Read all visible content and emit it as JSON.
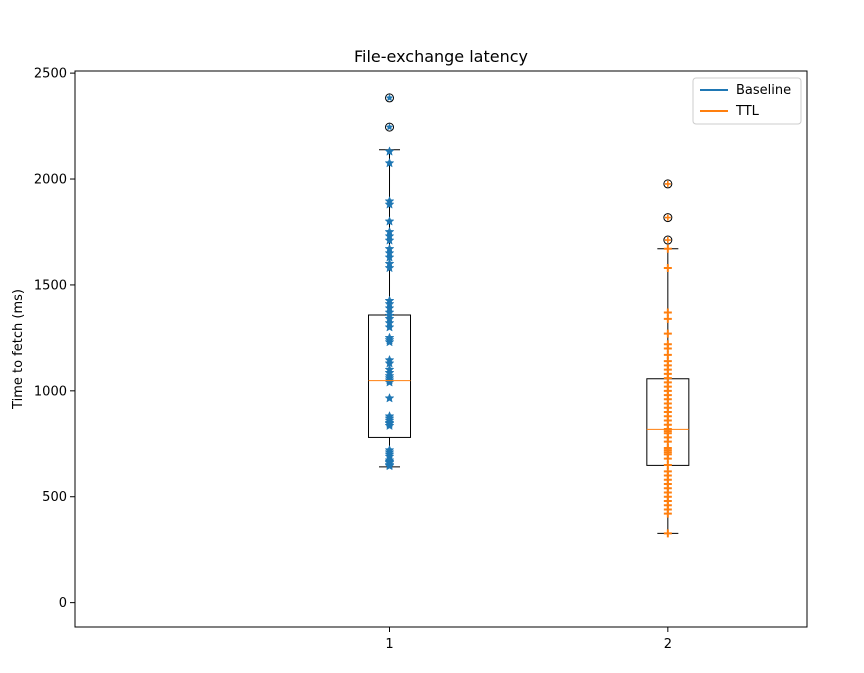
{
  "chart_data": {
    "type": "boxplot",
    "title": "File-exchange latency",
    "xlabel": "",
    "ylabel": "Time to fetch (ms)",
    "x_ticks": [
      "1",
      "2"
    ],
    "y_ticks": [
      0,
      500,
      1000,
      1500,
      2000,
      2500
    ],
    "ylim": [
      -115,
      2510
    ],
    "xlim": [
      -0.13,
      2.5
    ],
    "grid": false,
    "legend": {
      "placement": "top-right",
      "entries": [
        {
          "label": "Baseline",
          "color": "#1f77b4"
        },
        {
          "label": "TTL",
          "color": "#ff7f0e"
        }
      ]
    },
    "series": [
      {
        "legend_label": "Baseline",
        "position": 1,
        "color": "#1f77b4",
        "marker": "star",
        "box": {
          "q1": 780,
          "median": 1048,
          "q3": 1358,
          "whisker_low": 641,
          "whisker_high": 2138
        },
        "outliers": [
          2245,
          2383
        ],
        "points": [
          645,
          650,
          660,
          665,
          672,
          690,
          700,
          710,
          720,
          835,
          845,
          850,
          860,
          870,
          880,
          965,
          1040,
          1050,
          1060,
          1070,
          1085,
          1100,
          1130,
          1145,
          1230,
          1240,
          1250,
          1300,
          1320,
          1340,
          1355,
          1370,
          1390,
          1410,
          1425,
          1580,
          1600,
          1630,
          1650,
          1670,
          1710,
          1730,
          1750,
          1800,
          1880,
          1895,
          2075,
          2130
        ]
      },
      {
        "legend_label": "TTL",
        "position": 2,
        "color": "#ff7f0e",
        "marker": "plus",
        "box": {
          "q1": 648,
          "median": 818,
          "q3": 1057,
          "whisker_low": 327,
          "whisker_high": 1671
        },
        "outliers": [
          1712,
          1818,
          1977
        ],
        "points": [
          327,
          420,
          440,
          460,
          480,
          500,
          520,
          540,
          560,
          580,
          600,
          620,
          650,
          680,
          700,
          710,
          720,
          730,
          760,
          780,
          800,
          810,
          820,
          840,
          860,
          880,
          900,
          920,
          940,
          960,
          980,
          1000,
          1020,
          1040,
          1060,
          1080,
          1100,
          1120,
          1140,
          1170,
          1200,
          1220,
          1270,
          1340,
          1370,
          1580,
          1671
        ]
      }
    ]
  }
}
